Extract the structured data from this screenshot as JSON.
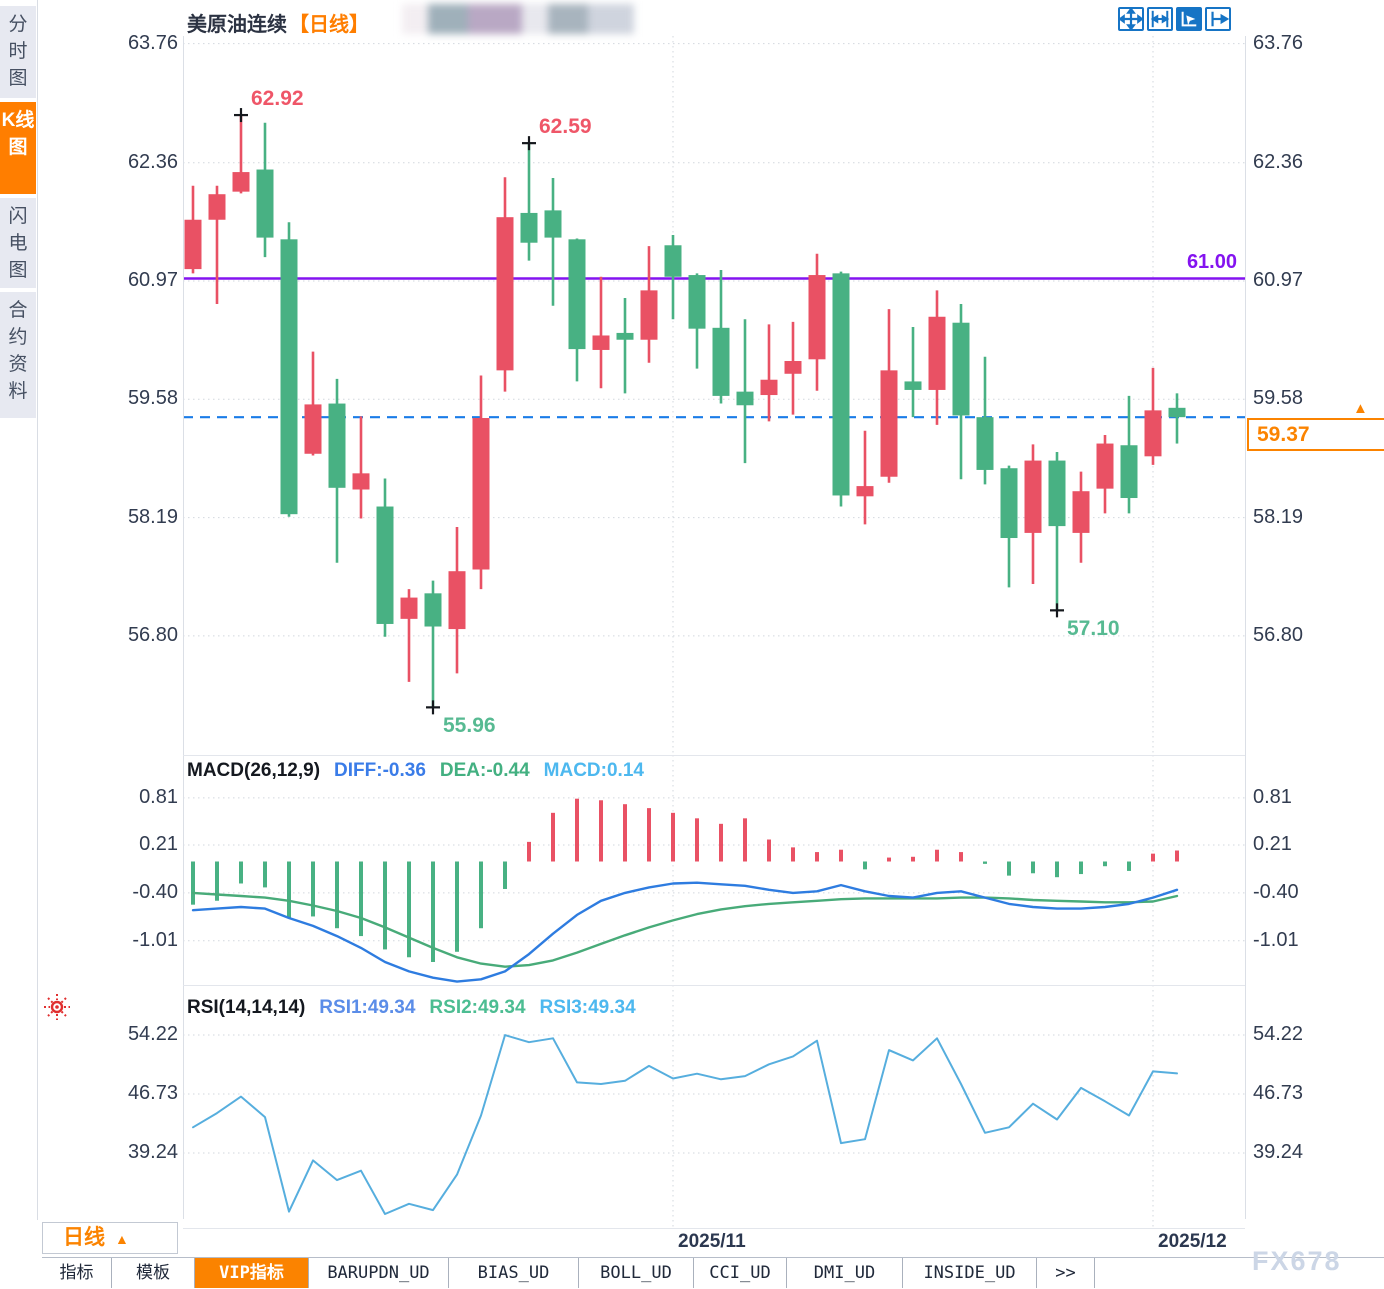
{
  "header": {
    "title": "美原油连续",
    "period_tag": "【日线】"
  },
  "sidebar": {
    "items": [
      {
        "label": "分时图",
        "active": false
      },
      {
        "label": "K线图",
        "active": true
      },
      {
        "label": "闪电图",
        "active": false
      },
      {
        "label": "合约资料",
        "active": false
      }
    ]
  },
  "toolbar": {
    "icons": [
      {
        "name": "move-crosshair-icon",
        "active": false
      },
      {
        "name": "axis-scale-icon",
        "active": false
      },
      {
        "name": "pointer-chart-icon",
        "active": true
      },
      {
        "name": "pan-right-icon",
        "active": false
      }
    ]
  },
  "period_selector": {
    "label": "日线",
    "arrow": "▲"
  },
  "bottom_tabs": {
    "items": [
      {
        "label": "指标",
        "active": false
      },
      {
        "label": "模板",
        "active": false
      },
      {
        "label": "VIP指标",
        "active": true
      },
      {
        "label": "BARUPDN_UD",
        "active": false
      },
      {
        "label": "BIAS_UD",
        "active": false
      },
      {
        "label": "BOLL_UD",
        "active": false
      },
      {
        "label": "CCI_UD",
        "active": false
      },
      {
        "label": "DMI_UD",
        "active": false
      },
      {
        "label": "INSIDE_UD",
        "active": false
      },
      {
        "label": ">>",
        "active": false
      }
    ]
  },
  "watermark": "FX678",
  "colors": {
    "up": "#e95164",
    "down": "#48b183",
    "level_line": "#8413f0",
    "dashed_line": "#1a7ce8",
    "accent_orange": "#fb8300",
    "diff_line": "#2e7ce0",
    "dea_line": "#48ab79",
    "macd_value": "#4db8ef",
    "rsi_line": "#56aede",
    "grid": "#d2d7de",
    "ann_high": "#ef5668",
    "ann_low": "#57ba92"
  },
  "chart_data": {
    "type": "candlestick",
    "symbol": "美原油连续",
    "interval": "日线",
    "price_axis_ticks": [
      "63.76",
      "62.36",
      "60.97",
      "59.58",
      "58.19",
      "56.80"
    ],
    "candles": [
      [
        61.11,
        62.09,
        61.06,
        61.69
      ],
      [
        61.69,
        62.09,
        60.7,
        61.99
      ],
      [
        62.02,
        62.92,
        62.0,
        62.25
      ],
      [
        62.28,
        62.83,
        61.25,
        61.48
      ],
      [
        61.46,
        61.66,
        58.2,
        58.23
      ],
      [
        58.94,
        60.14,
        58.92,
        59.52
      ],
      [
        59.53,
        59.82,
        57.66,
        58.54
      ],
      [
        58.52,
        59.38,
        58.18,
        58.71
      ],
      [
        58.32,
        58.65,
        56.79,
        56.94
      ],
      [
        57.0,
        57.35,
        56.26,
        57.25
      ],
      [
        57.3,
        57.45,
        55.96,
        56.91
      ],
      [
        56.88,
        58.08,
        56.36,
        57.56
      ],
      [
        57.58,
        59.86,
        57.35,
        59.36
      ],
      [
        59.92,
        62.19,
        59.67,
        61.72
      ],
      [
        61.77,
        62.59,
        61.21,
        61.42
      ],
      [
        61.8,
        62.18,
        60.68,
        61.48
      ],
      [
        61.46,
        61.47,
        59.79,
        60.17
      ],
      [
        60.16,
        61.02,
        59.71,
        60.33
      ],
      [
        60.36,
        60.77,
        59.65,
        60.28
      ],
      [
        60.28,
        61.38,
        60.01,
        60.86
      ],
      [
        61.39,
        61.51,
        60.52,
        61.02
      ],
      [
        61.04,
        61.06,
        59.94,
        60.41
      ],
      [
        60.42,
        61.1,
        59.53,
        59.62
      ],
      [
        59.67,
        60.52,
        58.83,
        59.51
      ],
      [
        59.63,
        60.46,
        59.32,
        59.81
      ],
      [
        59.88,
        60.49,
        59.4,
        60.03
      ],
      [
        60.05,
        61.29,
        59.68,
        61.04
      ],
      [
        61.06,
        61.08,
        58.32,
        58.45
      ],
      [
        58.44,
        59.21,
        58.11,
        58.56
      ],
      [
        58.67,
        60.64,
        58.6,
        59.92
      ],
      [
        59.79,
        60.43,
        59.37,
        59.69
      ],
      [
        59.69,
        60.86,
        59.28,
        60.55
      ],
      [
        60.48,
        60.7,
        58.64,
        59.39
      ],
      [
        59.37,
        60.08,
        58.58,
        58.75
      ],
      [
        58.77,
        58.8,
        57.37,
        57.95
      ],
      [
        58.01,
        59.05,
        57.41,
        58.86
      ],
      [
        58.86,
        58.96,
        57.1,
        58.09
      ],
      [
        58.01,
        58.73,
        57.66,
        58.5
      ],
      [
        58.53,
        59.16,
        58.24,
        59.06
      ],
      [
        59.04,
        59.62,
        58.24,
        58.42
      ],
      [
        58.91,
        59.95,
        58.81,
        59.45
      ],
      [
        59.48,
        59.65,
        59.06,
        59.37
      ]
    ],
    "annotations": [
      {
        "index": 2,
        "type": "high",
        "text": "62.92"
      },
      {
        "index": 14,
        "type": "high",
        "text": "62.59"
      },
      {
        "index": 10,
        "type": "low",
        "text": "55.96"
      },
      {
        "index": 36,
        "type": "low",
        "text": "57.10"
      }
    ],
    "level_line": {
      "value": 61.0,
      "label": "61.00"
    },
    "current_price": {
      "value": 59.37,
      "label": "59.37"
    },
    "time_axis": [
      {
        "index": 20,
        "label": "2025/11"
      },
      {
        "index": 40,
        "label": "2025/12"
      }
    ],
    "macd": {
      "title": "MACD(26,12,9)",
      "diff_label": "DIFF:-0.36",
      "dea_label": "DEA:-0.44",
      "macd_label": "MACD:0.14",
      "axis_ticks": [
        "0.81",
        "0.21",
        "-0.40",
        "-1.01"
      ],
      "histogram": [
        -0.55,
        -0.5,
        -0.28,
        -0.33,
        -0.72,
        -0.7,
        -0.85,
        -0.95,
        -1.12,
        -1.22,
        -1.28,
        -1.15,
        -0.85,
        -0.35,
        0.25,
        0.62,
        0.8,
        0.78,
        0.73,
        0.68,
        0.62,
        0.55,
        0.48,
        0.55,
        0.28,
        0.18,
        0.12,
        0.15,
        -0.1,
        0.05,
        0.06,
        0.15,
        0.12,
        -0.03,
        -0.18,
        -0.15,
        -0.2,
        -0.16,
        -0.06,
        -0.12,
        0.1,
        0.14
      ],
      "diff": [
        -0.62,
        -0.6,
        -0.58,
        -0.6,
        -0.72,
        -0.82,
        -0.95,
        -1.1,
        -1.28,
        -1.4,
        -1.48,
        -1.53,
        -1.5,
        -1.4,
        -1.18,
        -0.92,
        -0.68,
        -0.5,
        -0.4,
        -0.33,
        -0.28,
        -0.27,
        -0.29,
        -0.31,
        -0.36,
        -0.4,
        -0.38,
        -0.3,
        -0.38,
        -0.44,
        -0.46,
        -0.4,
        -0.38,
        -0.46,
        -0.54,
        -0.58,
        -0.6,
        -0.6,
        -0.58,
        -0.54,
        -0.46,
        -0.36
      ],
      "dea": [
        -0.4,
        -0.42,
        -0.44,
        -0.46,
        -0.5,
        -0.56,
        -0.63,
        -0.72,
        -0.84,
        -0.97,
        -1.1,
        -1.22,
        -1.3,
        -1.34,
        -1.32,
        -1.26,
        -1.16,
        -1.05,
        -0.94,
        -0.84,
        -0.75,
        -0.67,
        -0.61,
        -0.57,
        -0.54,
        -0.52,
        -0.5,
        -0.48,
        -0.47,
        -0.47,
        -0.47,
        -0.47,
        -0.46,
        -0.46,
        -0.47,
        -0.49,
        -0.5,
        -0.51,
        -0.52,
        -0.52,
        -0.51,
        -0.44
      ]
    },
    "rsi": {
      "title": "RSI(14,14,14)",
      "rsi1_label": "RSI1:49.34",
      "rsi2_label": "RSI2:49.34",
      "rsi3_label": "RSI3:49.34",
      "axis_ticks": [
        "54.22",
        "46.73",
        "39.24"
      ],
      "values": [
        42.5,
        44.3,
        46.4,
        43.8,
        31.8,
        38.3,
        35.8,
        37.0,
        31.5,
        32.8,
        32.0,
        36.5,
        44.0,
        54.2,
        53.3,
        53.8,
        48.2,
        48.0,
        48.4,
        50.3,
        48.7,
        49.3,
        48.6,
        49.0,
        50.5,
        51.5,
        53.5,
        40.5,
        41.0,
        52.3,
        51.0,
        53.8,
        48.0,
        41.8,
        42.5,
        45.5,
        43.5,
        47.5,
        45.8,
        44.0,
        49.6,
        49.34
      ]
    }
  }
}
